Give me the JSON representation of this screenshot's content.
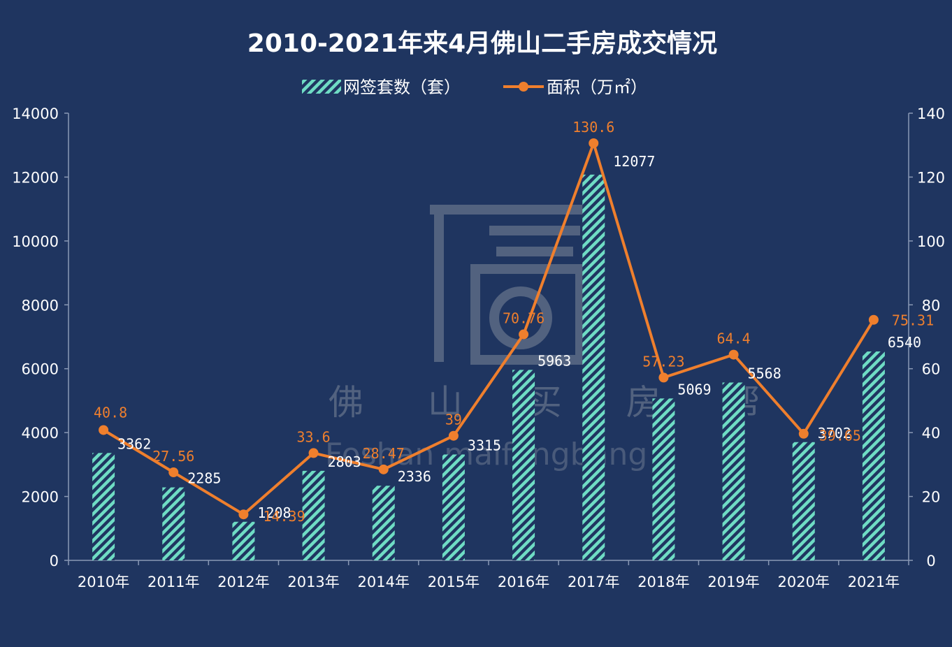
{
  "colors": {
    "background": "#1f3560",
    "bar_stripe": "#6fdcc4",
    "line": "#ef7f2d",
    "text": "#ffffff"
  },
  "watermark": {
    "cn": "佛 山 买 房 帮",
    "en": "Foshan maifangbang"
  },
  "chart_data": {
    "type": "bar",
    "title": "2010-2021年来4月佛山二手房成交情况",
    "legend_position": "top",
    "categories": [
      "2010年",
      "2011年",
      "2012年",
      "2013年",
      "2014年",
      "2015年",
      "2016年",
      "2017年",
      "2018年",
      "2019年",
      "2020年",
      "2021年"
    ],
    "series": [
      {
        "name": "网签套数（套）",
        "type": "bar",
        "axis": "left",
        "values": [
          3362,
          2285,
          1208,
          2803,
          2336,
          3315,
          5963,
          12077,
          5069,
          5568,
          3702,
          6540
        ]
      },
      {
        "name": "面积（万㎡）",
        "type": "line",
        "axis": "right",
        "values": [
          40.8,
          27.56,
          14.39,
          33.6,
          28.47,
          39,
          70.76,
          130.6,
          57.23,
          64.4,
          39.65,
          75.31
        ]
      }
    ],
    "y_left": {
      "min": 0,
      "max": 14000,
      "ticks": [
        0,
        2000,
        4000,
        6000,
        8000,
        10000,
        12000,
        14000
      ]
    },
    "y_right": {
      "min": 0,
      "max": 140,
      "ticks": [
        0,
        20,
        40,
        60,
        80,
        100,
        120,
        140
      ]
    },
    "grid": false
  }
}
